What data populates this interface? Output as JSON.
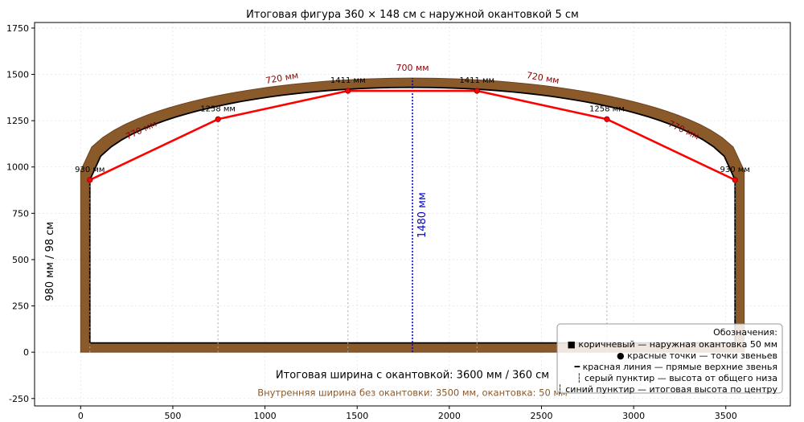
{
  "chart_data": {
    "type": "line",
    "title": "Итоговая фигура 360 × 148 см с наружной окантовкой 5 см",
    "xlim": [
      -250,
      3850
    ],
    "ylim": [
      -290,
      1780
    ],
    "x_ticks": [
      0,
      500,
      1000,
      1500,
      2000,
      2500,
      3000,
      3500
    ],
    "y_ticks": [
      -250,
      0,
      250,
      500,
      750,
      1000,
      1250,
      1500,
      1750
    ],
    "grid": true,
    "colors": {
      "frame": "#8b5a2b",
      "frame_edge": "#6b4420",
      "segments": "#ff0000",
      "arc": "#000000",
      "guides": "#aaaaaa",
      "center": "#0000cc",
      "segment_label": "#8b0000",
      "inner_note": "#8b5a2b"
    },
    "outer": {
      "x0": 0,
      "x1": 3600,
      "bottom": 0,
      "side_height": 980,
      "top": 1480
    },
    "inner": {
      "x0": 50,
      "x1": 3550,
      "bottom": 50,
      "side_height": 930,
      "top": 1430
    },
    "points": [
      {
        "x": 50,
        "y": 930,
        "label": "930 мм"
      },
      {
        "x": 745,
        "y": 1258,
        "label": "1258 мм"
      },
      {
        "x": 1450,
        "y": 1411,
        "label": "1411 мм"
      },
      {
        "x": 2150,
        "y": 1411,
        "label": "1411 мм"
      },
      {
        "x": 2855,
        "y": 1258,
        "label": "1258 мм"
      },
      {
        "x": 3550,
        "y": 930,
        "label": "930 мм"
      }
    ],
    "segments": [
      {
        "label": "770 мм",
        "x": 335,
        "y": 1185,
        "angle": -25
      },
      {
        "label": "720 мм",
        "x": 1095,
        "y": 1465,
        "angle": -10
      },
      {
        "label": "700 мм",
        "x": 1800,
        "y": 1520,
        "angle": 0
      },
      {
        "label": "720 мм",
        "x": 2505,
        "y": 1465,
        "angle": 10
      },
      {
        "label": "770 мм",
        "x": 3265,
        "y": 1185,
        "angle": 25
      }
    ],
    "center_line": {
      "x": 1800,
      "y0": 0,
      "y1": 1480,
      "label": "1480 мм",
      "label_x": 1870,
      "label_y": 740
    },
    "side_label": {
      "text": "980 мм / 98 см",
      "x": -150,
      "y": 490
    },
    "width_label": {
      "text": "Итоговая ширина с окантовкой: 3600 мм / 360 см",
      "x": 1800,
      "y": -140
    },
    "inner_note": {
      "text": "Внутренняя ширина без окантовки: 3500 мм, окантовка: 50 мм",
      "x": 1800,
      "y": -235
    },
    "legend": {
      "title": "Обозначения:",
      "location": "lower right",
      "entries": [
        "■ коричневый — наружная окантовка 50 мм",
        "● красные точки — точки звеньев",
        "━ красная линия — прямые верхние звенья",
        "┆ серый пунктир — высота от общего низа",
        "┆ синий пунктир — итоговая высота по центру"
      ]
    }
  }
}
